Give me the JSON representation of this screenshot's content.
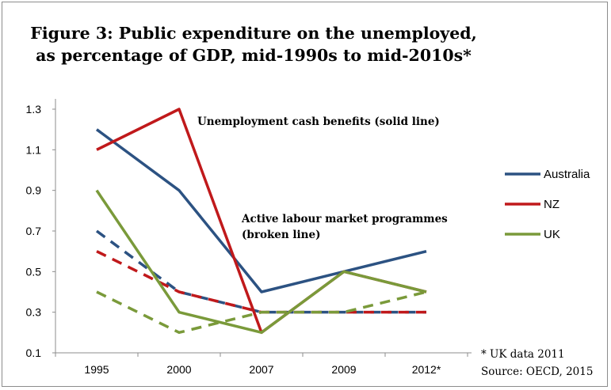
{
  "chart_data": {
    "type": "line",
    "title_line1": "Figure 3:  Public expenditure on the unemployed,",
    "title_line2": "as percentage of GDP, mid-1990s to mid-2010s*",
    "categories": [
      "1995",
      "2000",
      "2007",
      "2009",
      "2012*"
    ],
    "ylim": [
      0.1,
      1.3
    ],
    "yticks": [
      "0.1",
      "0.3",
      "0.5",
      "0.7",
      "0.9",
      "1.1",
      "1.3"
    ],
    "series": [
      {
        "name": "Australia",
        "color": "#2c5282",
        "measure": "cash",
        "values": [
          1.2,
          0.9,
          0.4,
          0.5,
          0.6
        ]
      },
      {
        "name": "NZ",
        "color": "#c0191b",
        "measure": "cash",
        "values": [
          1.1,
          1.3,
          0.2,
          0.5,
          0.4
        ]
      },
      {
        "name": "UK",
        "color": "#7a9a3a",
        "measure": "cash",
        "values": [
          0.9,
          0.3,
          0.2,
          0.5,
          0.4
        ]
      },
      {
        "name": "Australia",
        "color": "#2c5282",
        "measure": "almp",
        "values": [
          0.7,
          0.4,
          0.3,
          0.3,
          0.3
        ]
      },
      {
        "name": "NZ",
        "color": "#c0191b",
        "measure": "almp",
        "values": [
          0.6,
          0.4,
          0.3,
          0.3,
          0.3
        ]
      },
      {
        "name": "UK",
        "color": "#7a9a3a",
        "measure": "almp",
        "values": [
          0.4,
          0.2,
          0.3,
          0.3,
          0.4
        ]
      }
    ],
    "annotations": {
      "cash": "Unemployment  cash benefits (solid line)",
      "almp_line1": "Active labour market programmes",
      "almp_line2": "(broken line)"
    },
    "legend": {
      "placement": "right",
      "entries": [
        {
          "label": "Australia",
          "color": "#2c5282"
        },
        {
          "label": "NZ",
          "color": "#c0191b"
        },
        {
          "label": "UK",
          "color": "#7a9a3a"
        }
      ]
    },
    "notes": [
      "* UK data 2011",
      "Source: OECD, 2015"
    ],
    "grid": false
  }
}
